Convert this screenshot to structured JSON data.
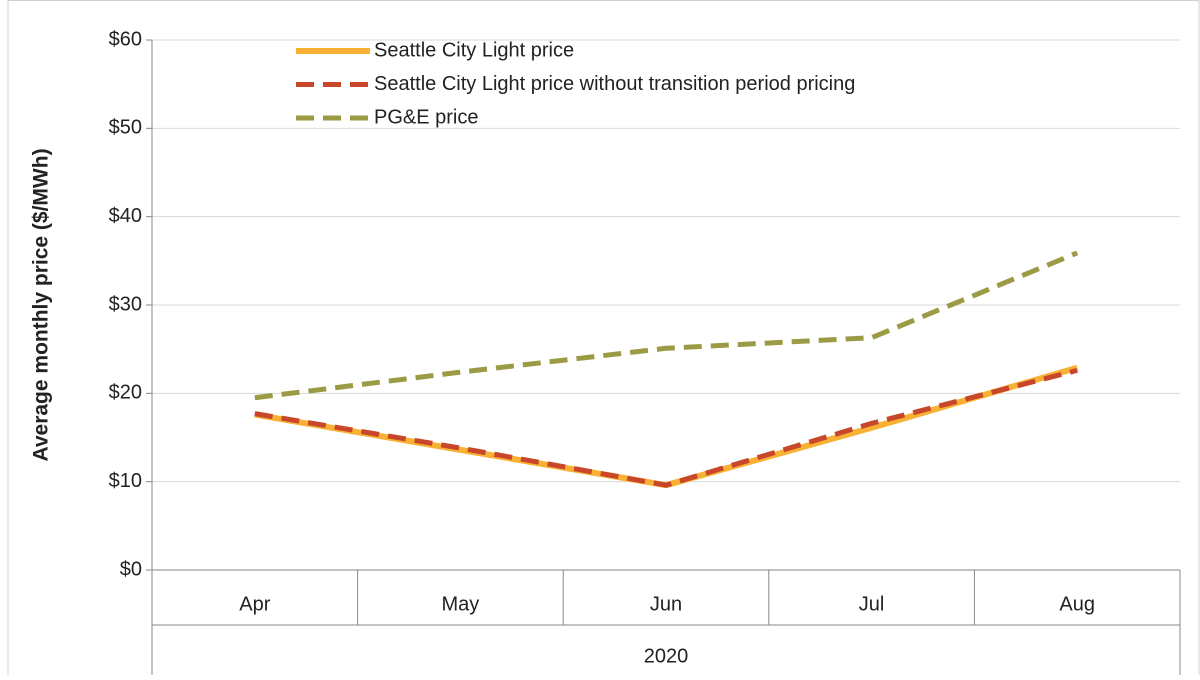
{
  "chart_data": {
    "type": "line",
    "y_axis_label": "Average monthly price ($/MWh)",
    "categories": [
      "Apr",
      "May",
      "Jun",
      "Jul",
      "Aug"
    ],
    "category_group": "2020",
    "series": [
      {
        "name": "Seattle City Light price",
        "color": "#f8b133",
        "line_style": "solid",
        "values": [
          17.6,
          13.6,
          9.6,
          16.1,
          22.9
        ]
      },
      {
        "name": "Seattle City Light price without transition period pricing",
        "color": "#c8472b",
        "line_style": "dashed",
        "values": [
          17.7,
          13.8,
          9.6,
          16.6,
          22.6
        ]
      },
      {
        "name": "PG&E price",
        "color": "#9c9b45",
        "line_style": "dashed",
        "values": [
          19.5,
          22.4,
          25.1,
          26.3,
          35.9
        ]
      }
    ],
    "ylim": [
      0,
      60
    ],
    "yticks": [
      {
        "value": 0,
        "label": "$0"
      },
      {
        "value": 10,
        "label": "$10"
      },
      {
        "value": 20,
        "label": "$20"
      },
      {
        "value": 30,
        "label": "$30"
      },
      {
        "value": 40,
        "label": "$40"
      },
      {
        "value": 50,
        "label": "$50"
      },
      {
        "value": 60,
        "label": "$60"
      }
    ],
    "grid": true,
    "legend": "top-left"
  }
}
